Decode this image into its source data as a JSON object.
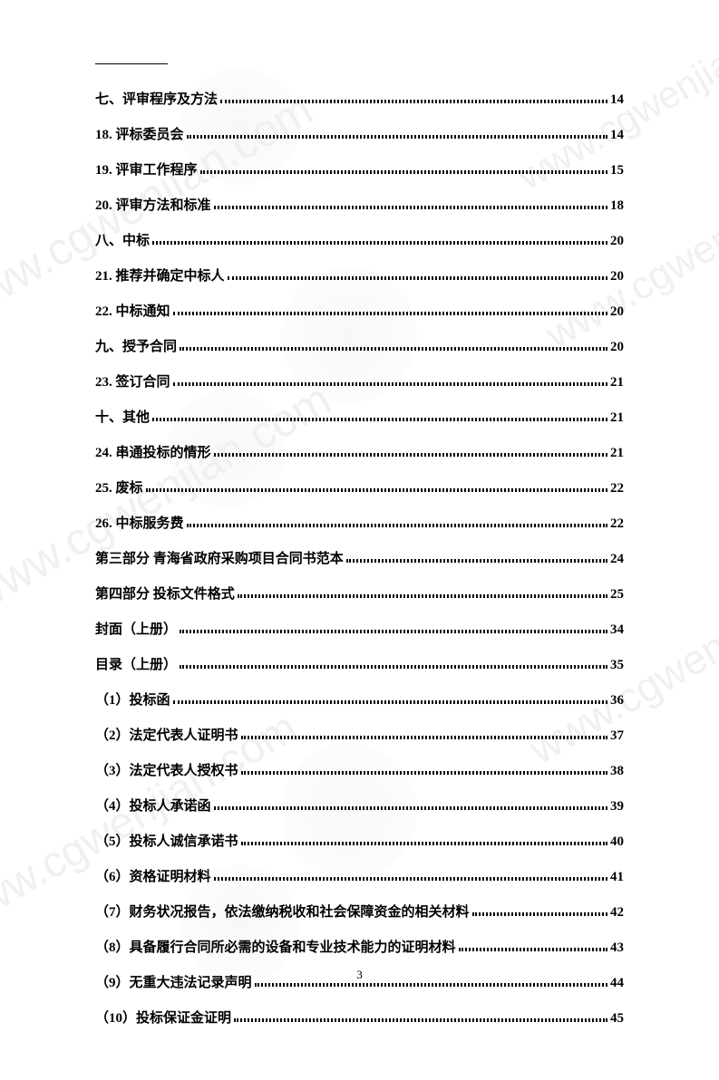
{
  "page_number": "3",
  "watermark_text": "www.cgwenjian.com",
  "toc_entries": [
    {
      "label": "七、评审程序及方法",
      "page": "14"
    },
    {
      "label": "18. 评标委员会",
      "page": "14"
    },
    {
      "label": "19. 评审工作程序",
      "page": "15"
    },
    {
      "label": "20. 评审方法和标准",
      "page": "18"
    },
    {
      "label": "八、中标",
      "page": "20"
    },
    {
      "label": "21. 推荐并确定中标人",
      "page": "20"
    },
    {
      "label": "22. 中标通知",
      "page": "20"
    },
    {
      "label": "九、授予合同",
      "page": "20"
    },
    {
      "label": "23. 签订合同",
      "page": "21"
    },
    {
      "label": "十、其他",
      "page": "21"
    },
    {
      "label": "24.  串通投标的情形",
      "page": "21"
    },
    {
      "label": "25.  废标",
      "page": "22"
    },
    {
      "label": "26.  中标服务费",
      "page": "22"
    },
    {
      "label": "第三部分   青海省政府采购项目合同书范本",
      "page": " 24"
    },
    {
      "label": "第四部分   投标文件格式",
      "page": "25"
    },
    {
      "label": "封面（上册）",
      "page": "34"
    },
    {
      "label": "目录（上册）",
      "page": "35"
    },
    {
      "label": "（1）投标函",
      "page": "36"
    },
    {
      "label": "（2）法定代表人证明书",
      "page": "37"
    },
    {
      "label": "（3）法定代表人授权书",
      "page": "38"
    },
    {
      "label": "（4）投标人承诺函",
      "page": "39"
    },
    {
      "label": "（5）投标人诚信承诺书",
      "page": "40"
    },
    {
      "label": "（6）资格证明材料",
      "page": "41"
    },
    {
      "label": "（7）财务状况报告，依法缴纳税收和社会保障资金的相关材料",
      "page": " 42"
    },
    {
      "label": "（8）具备履行合同所必需的设备和专业技术能力的证明材料",
      "page": " 43"
    },
    {
      "label": "（9）无重大违法记录声明",
      "page": "44"
    },
    {
      "label": "（10）投标保证金证明",
      "page": "45"
    }
  ]
}
